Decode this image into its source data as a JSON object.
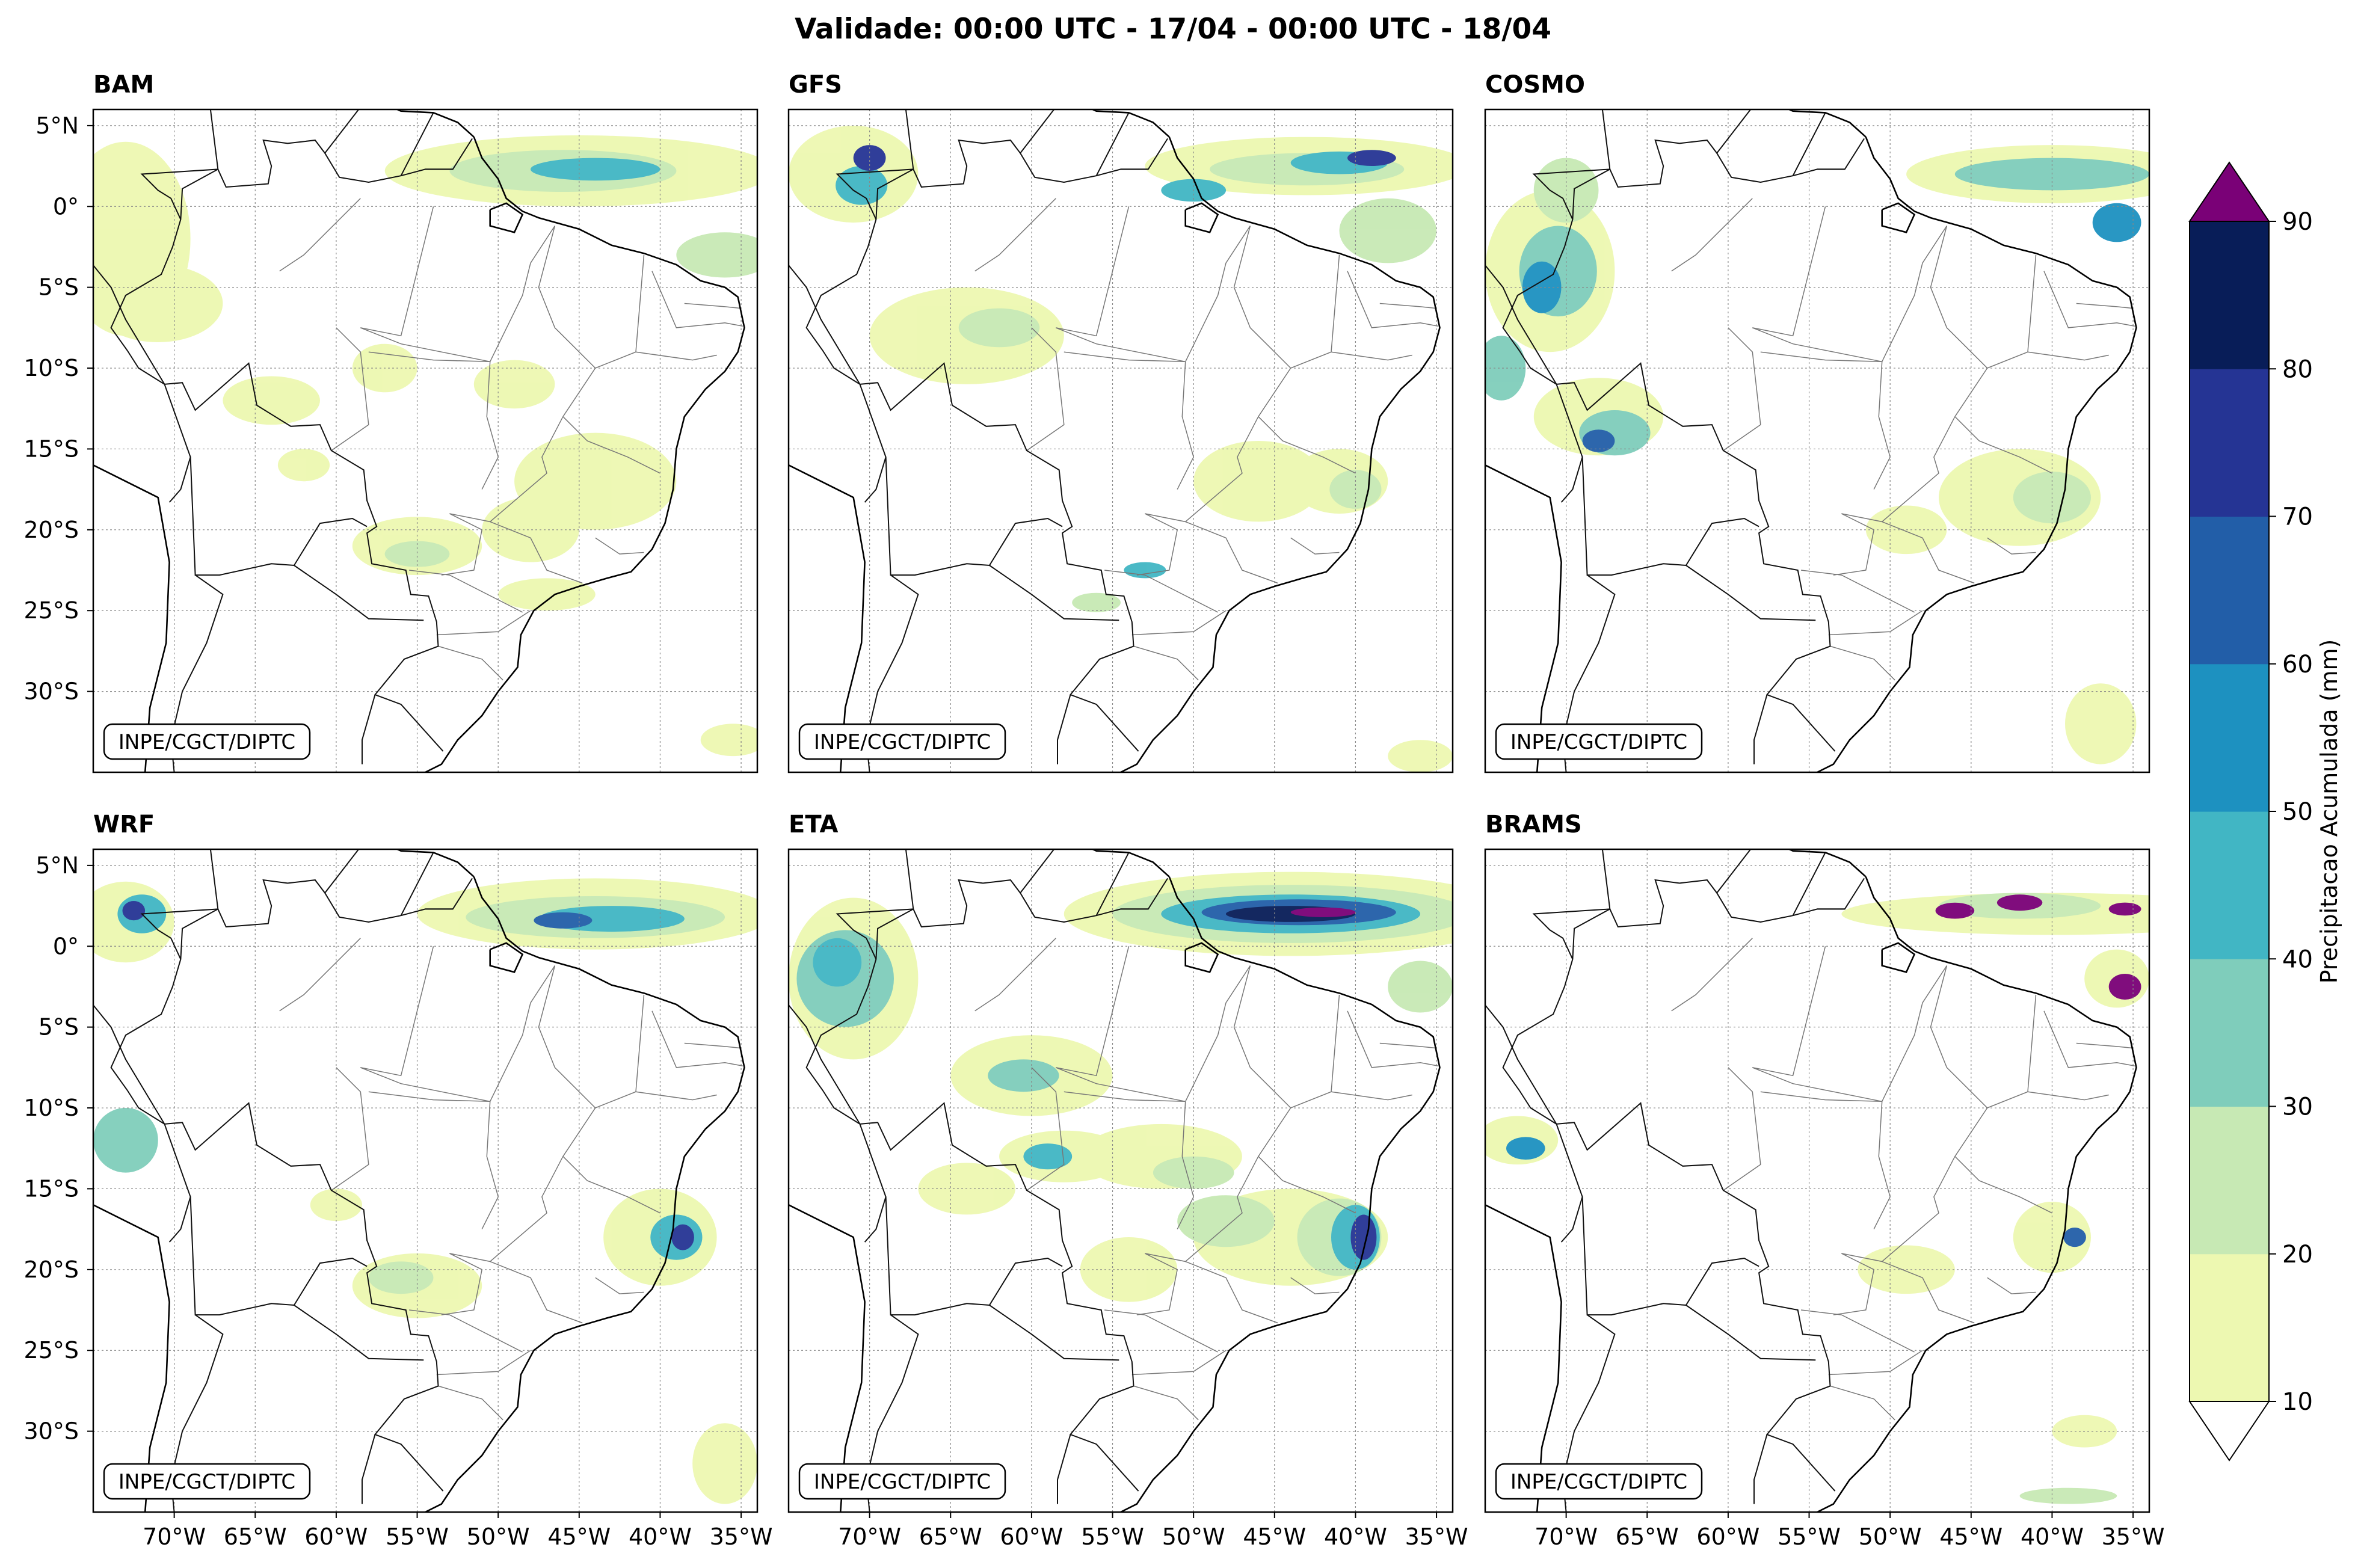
{
  "title": "Validade: 00:00 UTC - 17/04 - 00:00 UTC - 18/04",
  "panels": [
    {
      "id": "bam",
      "name": "BAM",
      "credit": "INPE/CGCT/DIPTC"
    },
    {
      "id": "gfs",
      "name": "GFS",
      "credit": "INPE/CGCT/DIPTC"
    },
    {
      "id": "cosmo",
      "name": "COSMO",
      "credit": "INPE/CGCT/DIPTC"
    },
    {
      "id": "wrf",
      "name": "WRF",
      "credit": "INPE/CGCT/DIPTC"
    },
    {
      "id": "eta",
      "name": "ETA",
      "credit": "INPE/CGCT/DIPTC"
    },
    {
      "id": "brams",
      "name": "BRAMS",
      "credit": "INPE/CGCT/DIPTC"
    }
  ],
  "lat_ticks": [
    "5°N",
    "0°",
    "5°S",
    "10°S",
    "15°S",
    "20°S",
    "25°S",
    "30°S"
  ],
  "lon_ticks": [
    "70°W",
    "65°W",
    "60°W",
    "55°W",
    "50°W",
    "45°W",
    "40°W",
    "35°W"
  ],
  "map_extent": {
    "lon": [
      -75,
      -34
    ],
    "lat": [
      -35,
      6
    ]
  },
  "gridlines": true,
  "colorbar": {
    "label": "Precipitacao Acumulada (mm)",
    "levels": [
      10,
      20,
      30,
      40,
      50,
      60,
      70,
      80,
      90
    ],
    "tick_labels": [
      "10",
      "20",
      "30",
      "40",
      "50",
      "60",
      "70",
      "80",
      "90"
    ],
    "colors": [
      "#edf8b1",
      "#c7e9b4",
      "#7fcdbb",
      "#41b6c4",
      "#1d91c0",
      "#225ea8",
      "#253494",
      "#081d58"
    ],
    "over_color": "#7a0177",
    "under_color": "#ffffff",
    "extend": "both"
  }
}
